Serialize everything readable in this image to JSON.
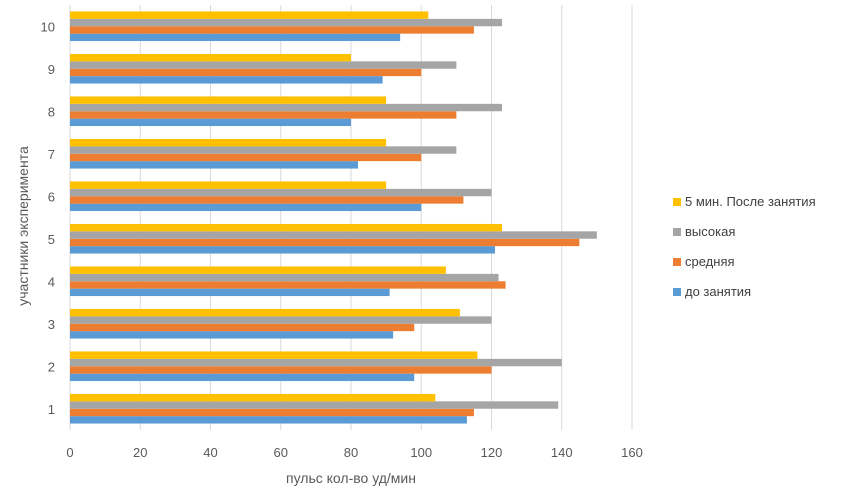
{
  "chart_data": {
    "type": "bar",
    "orientation": "horizontal",
    "title": "",
    "xlabel": "пульс кол-во уд/мин",
    "ylabel": "участники эксперимента",
    "xlim": [
      0,
      160
    ],
    "xticks": [
      0,
      20,
      40,
      60,
      80,
      100,
      120,
      140,
      160
    ],
    "grid": true,
    "legend_position": "right",
    "categories": [
      "1",
      "2",
      "3",
      "4",
      "5",
      "6",
      "7",
      "8",
      "9",
      "10"
    ],
    "series": [
      {
        "name": "до занятия",
        "color": "#5B9BD5",
        "values": [
          113,
          98,
          92,
          91,
          121,
          100,
          82,
          80,
          89,
          94
        ]
      },
      {
        "name": "средняя",
        "color": "#ED7D31",
        "values": [
          115,
          120,
          98,
          124,
          145,
          112,
          100,
          110,
          100,
          115
        ]
      },
      {
        "name": "высокая",
        "color": "#A5A5A5",
        "values": [
          139,
          140,
          120,
          122,
          150,
          120,
          110,
          123,
          110,
          123
        ]
      },
      {
        "name": "5 мин. После занятия",
        "color": "#FFC000",
        "values": [
          104,
          116,
          111,
          107,
          123,
          90,
          90,
          90,
          80,
          102
        ]
      }
    ],
    "legend_order": [
      "5 мин. После занятия",
      "высокая",
      "средняя",
      "до занятия"
    ]
  }
}
